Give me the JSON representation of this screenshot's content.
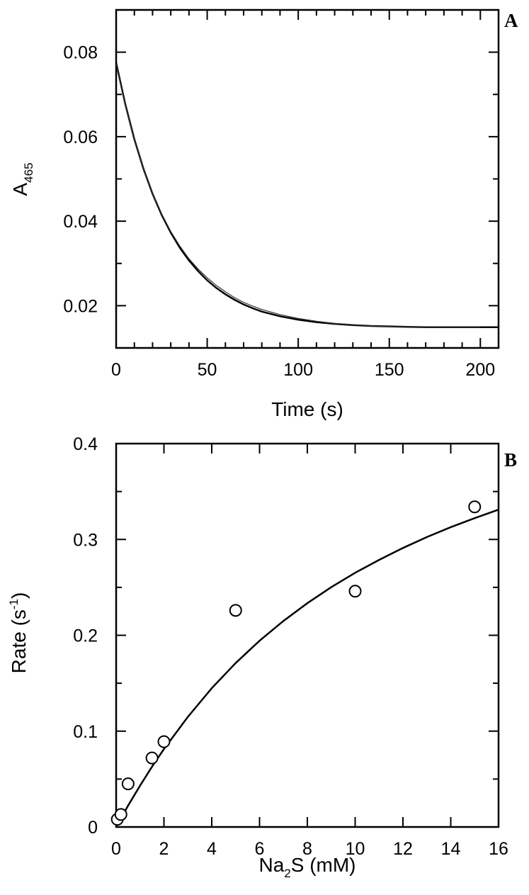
{
  "chart_data": [
    {
      "panel": "A",
      "type": "line",
      "xlabel": "Time (s)",
      "ylabel": "A",
      "ylabel_sub": "465",
      "xlim": [
        0,
        210
      ],
      "ylim": [
        0.01,
        0.09
      ],
      "xticks": [
        0,
        50,
        100,
        150,
        200
      ],
      "xticks_minor": [
        10,
        20,
        30,
        40,
        60,
        70,
        80,
        90,
        110,
        120,
        130,
        140,
        160,
        170,
        180,
        190
      ],
      "yticks": [
        0.02,
        0.04,
        0.06,
        0.08
      ],
      "yticks_minor": [
        0.03,
        0.05,
        0.07
      ],
      "ytick_labels": [
        "0.02",
        "0.04",
        "0.06",
        "0.08"
      ],
      "series": [
        {
          "kind": "fit",
          "x": [
            0,
            5,
            10,
            15,
            20,
            25,
            30,
            35,
            40,
            45,
            50,
            55,
            60,
            65,
            70,
            75,
            80,
            90,
            100,
            110,
            120,
            130,
            140,
            150,
            160,
            170,
            180,
            190,
            200,
            210
          ],
          "y": [
            0.0775,
            0.0677,
            0.0594,
            0.0524,
            0.0465,
            0.0415,
            0.0373,
            0.0337,
            0.0307,
            0.0282,
            0.026,
            0.0242,
            0.0227,
            0.0214,
            0.0203,
            0.0194,
            0.0186,
            0.0175,
            0.0167,
            0.0161,
            0.0157,
            0.0154,
            0.0152,
            0.0151,
            0.015,
            0.0149,
            0.0149,
            0.0149,
            0.0149,
            0.0149
          ]
        },
        {
          "kind": "data",
          "x": [
            0,
            5,
            10,
            15,
            20,
            25,
            30,
            35,
            40,
            45,
            50,
            55,
            60,
            65,
            70,
            75,
            80,
            90,
            100,
            110,
            120,
            130,
            140,
            150,
            160,
            170,
            180,
            190,
            200
          ],
          "y": [
            0.0772,
            0.0675,
            0.0593,
            0.0524,
            0.0466,
            0.0417,
            0.0376,
            0.0341,
            0.0311,
            0.0287,
            0.0266,
            0.0248,
            0.0233,
            0.0219,
            0.0208,
            0.0199,
            0.0191,
            0.0179,
            0.017,
            0.0163,
            0.0158,
            0.0155,
            0.0152,
            0.0151,
            0.015,
            0.0149,
            0.0149,
            0.0149,
            0.0149
          ]
        }
      ]
    },
    {
      "panel": "B",
      "type": "scatter",
      "xlabel_parts": [
        "Na",
        "2",
        "S (mM)"
      ],
      "ylabel_parts": [
        "Rate (s",
        "-1",
        ")"
      ],
      "xlim": [
        0,
        16
      ],
      "ylim": [
        0,
        0.4
      ],
      "xticks": [
        0,
        2,
        4,
        6,
        8,
        10,
        12,
        14,
        16
      ],
      "yticks": [
        0,
        0.1,
        0.2,
        0.3,
        0.4
      ],
      "yticks_minor": [
        0.05,
        0.15,
        0.25,
        0.35
      ],
      "ytick_labels": [
        "0",
        "0.1",
        "0.2",
        "0.3",
        "0.4"
      ],
      "points": {
        "x": [
          0.05,
          0.2,
          0.5,
          1.5,
          2.0,
          5.0,
          10.0,
          15.0
        ],
        "y": [
          0.008,
          0.013,
          0.045,
          0.072,
          0.089,
          0.226,
          0.246,
          0.334
        ]
      },
      "fit": {
        "x": [
          0,
          0.5,
          1,
          1.5,
          2,
          3,
          4,
          5,
          6,
          7,
          8,
          9,
          10,
          11,
          12,
          13,
          14,
          15,
          16
        ],
        "y": [
          0.0,
          0.0223,
          0.0432,
          0.0628,
          0.0813,
          0.1149,
          0.1448,
          0.171,
          0.1943,
          0.215,
          0.2335,
          0.2502,
          0.2652,
          0.2787,
          0.2911,
          0.3025,
          0.3128,
          0.3222,
          0.3311
        ]
      }
    }
  ]
}
